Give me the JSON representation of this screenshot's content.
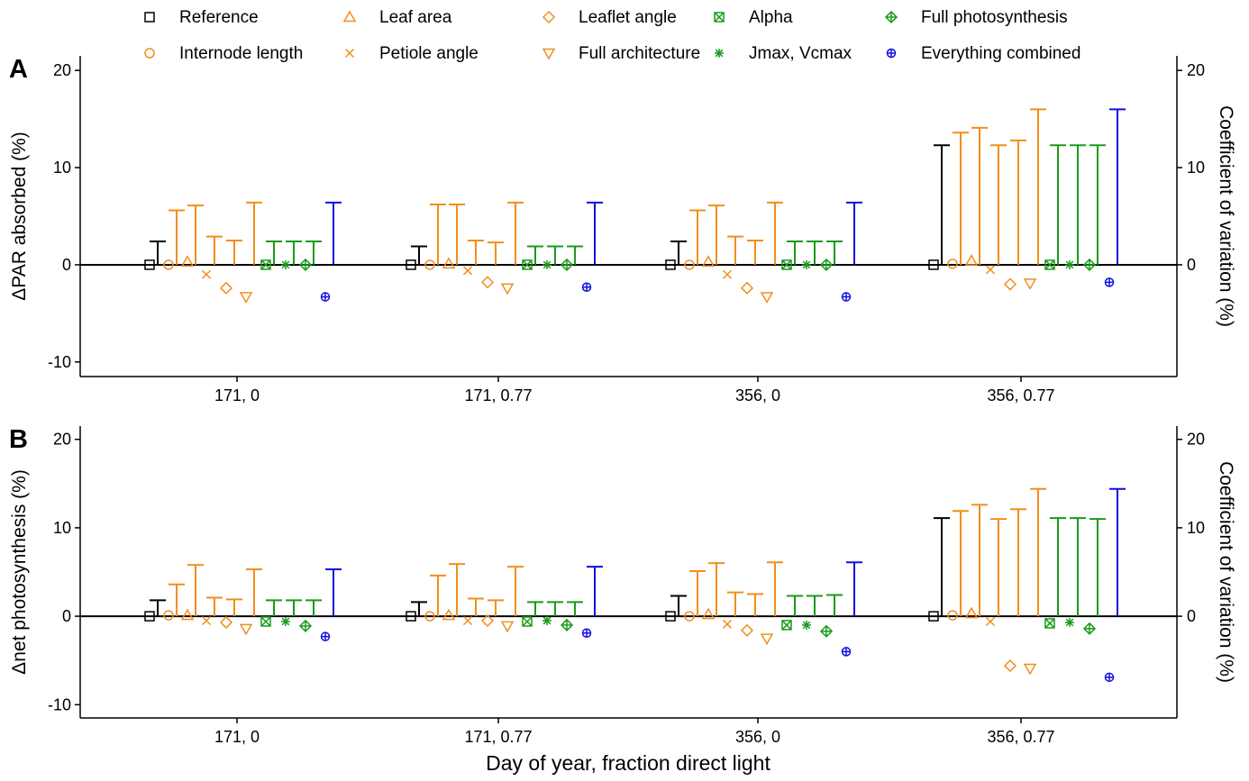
{
  "legend": [
    {
      "label": "Reference",
      "marker": "square",
      "color": "#000000"
    },
    {
      "label": "Internode length",
      "marker": "circle",
      "color": "#F28E1C"
    },
    {
      "label": "Leaf area",
      "marker": "triangle-up",
      "color": "#F28E1C"
    },
    {
      "label": "Petiole angle",
      "marker": "x",
      "color": "#F28E1C"
    },
    {
      "label": "Leaflet angle",
      "marker": "diamond",
      "color": "#F28E1C"
    },
    {
      "label": "Full architecture",
      "marker": "triangle-down",
      "color": "#F28E1C"
    },
    {
      "label": "Alpha",
      "marker": "square-x",
      "color": "#1A9A1A"
    },
    {
      "label": "Jmax, Vcmax",
      "marker": "asterisk",
      "color": "#1A9A1A"
    },
    {
      "label": "Full photosynthesis",
      "marker": "diamond-plus",
      "color": "#1A9A1A"
    },
    {
      "label": "Everything combined",
      "marker": "circle-plus",
      "color": "#1010E0"
    }
  ],
  "chart_data": [
    {
      "panel": "A",
      "type": "scatter",
      "ylabel": "ΔPAR absorbed (%)",
      "y2label": "Coefficient of variation (%)",
      "ylim": [
        -11.5,
        21.5
      ],
      "yticks": [
        -10,
        0,
        10,
        20
      ],
      "y2ticks": [
        0,
        10,
        20
      ],
      "categories": [
        "171, 0",
        "171, 0.77",
        "356, 0",
        "356, 0.77"
      ],
      "series": [
        {
          "name": "Reference",
          "mean": [
            0,
            0,
            0,
            0
          ],
          "cv": [
            2.4,
            1.9,
            2.4,
            12.3
          ]
        },
        {
          "name": "Internode length",
          "mean": [
            0,
            0,
            0,
            0.1
          ],
          "cv": [
            5.6,
            6.2,
            5.6,
            13.6
          ]
        },
        {
          "name": "Leaf area",
          "mean": [
            0.3,
            0.1,
            0.3,
            0.4
          ],
          "cv": [
            6.1,
            6.2,
            6.1,
            14.1
          ]
        },
        {
          "name": "Petiole angle",
          "mean": [
            -1.0,
            -0.6,
            -1.0,
            -0.5
          ],
          "cv": [
            2.9,
            2.5,
            2.9,
            12.3
          ]
        },
        {
          "name": "Leaflet angle",
          "mean": [
            -2.4,
            -1.8,
            -2.4,
            -2.0
          ],
          "cv": [
            2.5,
            2.3,
            2.5,
            12.8
          ]
        },
        {
          "name": "Full architecture",
          "mean": [
            -3.3,
            -2.4,
            -3.3,
            -1.9
          ],
          "cv": [
            6.4,
            6.4,
            6.4,
            16.0
          ]
        },
        {
          "name": "Alpha",
          "mean": [
            0,
            0,
            0,
            0
          ],
          "cv": [
            2.4,
            1.9,
            2.4,
            12.3
          ]
        },
        {
          "name": "Jmax, Vcmax",
          "mean": [
            0,
            0,
            0,
            0
          ],
          "cv": [
            2.4,
            1.9,
            2.4,
            12.3
          ]
        },
        {
          "name": "Full photosynthesis",
          "mean": [
            0,
            0,
            0,
            0
          ],
          "cv": [
            2.4,
            1.9,
            2.4,
            12.3
          ]
        },
        {
          "name": "Everything combined",
          "mean": [
            -3.3,
            -2.3,
            -3.3,
            -1.8
          ],
          "cv": [
            6.4,
            6.4,
            6.4,
            16.0
          ]
        }
      ]
    },
    {
      "panel": "B",
      "type": "scatter",
      "xlabel": "Day of year, fraction direct light",
      "ylabel": "Δnet photosynthesis (%)",
      "y2label": "Coefficient of variation (%)",
      "ylim": [
        -11.5,
        21.5
      ],
      "yticks": [
        -10,
        0,
        10,
        20
      ],
      "y2ticks": [
        0,
        10,
        20
      ],
      "categories": [
        "171, 0",
        "171, 0.77",
        "356, 0",
        "356, 0.77"
      ],
      "series": [
        {
          "name": "Reference",
          "mean": [
            0,
            0,
            0,
            0
          ],
          "cv": [
            1.8,
            1.6,
            2.3,
            11.1
          ]
        },
        {
          "name": "Internode length",
          "mean": [
            0.1,
            0,
            0,
            0.1
          ],
          "cv": [
            3.6,
            4.6,
            5.1,
            11.9
          ]
        },
        {
          "name": "Leaf area",
          "mean": [
            0.1,
            0.1,
            0.2,
            0.3
          ],
          "cv": [
            5.8,
            5.9,
            6.0,
            12.6
          ]
        },
        {
          "name": "Petiole angle",
          "mean": [
            -0.5,
            -0.5,
            -0.9,
            -0.6
          ],
          "cv": [
            2.1,
            2.0,
            2.7,
            11.0
          ]
        },
        {
          "name": "Leaflet angle",
          "mean": [
            -0.7,
            -0.5,
            -1.6,
            -5.6
          ],
          "cv": [
            1.9,
            1.8,
            2.5,
            12.1
          ]
        },
        {
          "name": "Full architecture",
          "mean": [
            -1.4,
            -1.1,
            -2.5,
            -5.9
          ],
          "cv": [
            5.3,
            5.6,
            6.1,
            14.4
          ]
        },
        {
          "name": "Alpha",
          "mean": [
            -0.6,
            -0.6,
            -1.0,
            -0.8
          ],
          "cv": [
            1.8,
            1.6,
            2.3,
            11.1
          ]
        },
        {
          "name": "Jmax, Vcmax",
          "mean": [
            -0.6,
            -0.5,
            -1.0,
            -0.7
          ],
          "cv": [
            1.8,
            1.6,
            2.3,
            11.1
          ]
        },
        {
          "name": "Full photosynthesis",
          "mean": [
            -1.1,
            -1.0,
            -1.7,
            -1.4
          ],
          "cv": [
            1.8,
            1.6,
            2.4,
            11.0
          ]
        },
        {
          "name": "Everything combined",
          "mean": [
            -2.3,
            -1.9,
            -4.0,
            -6.9
          ],
          "cv": [
            5.3,
            5.6,
            6.1,
            14.4
          ]
        }
      ]
    }
  ]
}
